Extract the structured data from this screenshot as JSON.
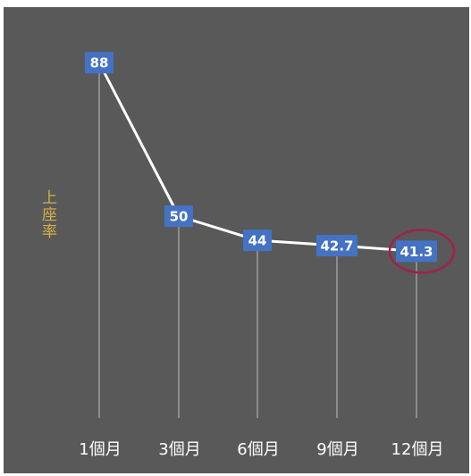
{
  "chart_data": {
    "type": "line",
    "categories": [
      "1個月",
      "3個月",
      "6個月",
      "9個月",
      "12個月"
    ],
    "values": [
      88,
      50,
      44,
      42.7,
      41.3
    ],
    "data_labels": [
      "88",
      "50",
      "44",
      "42.7",
      "41.3"
    ],
    "ylabel": "上座率",
    "ylim": [
      0,
      100
    ],
    "grid": false,
    "highlight_index": 4,
    "colors": {
      "background": "#595959",
      "line": "#ffffff",
      "label_box": "#4472c4",
      "label_text": "#ffffff",
      "axis_text": "#ffffff",
      "drop_line": "#bfbfbf",
      "highlight": "#a1214a",
      "ylabel": "#d4b04a"
    }
  }
}
